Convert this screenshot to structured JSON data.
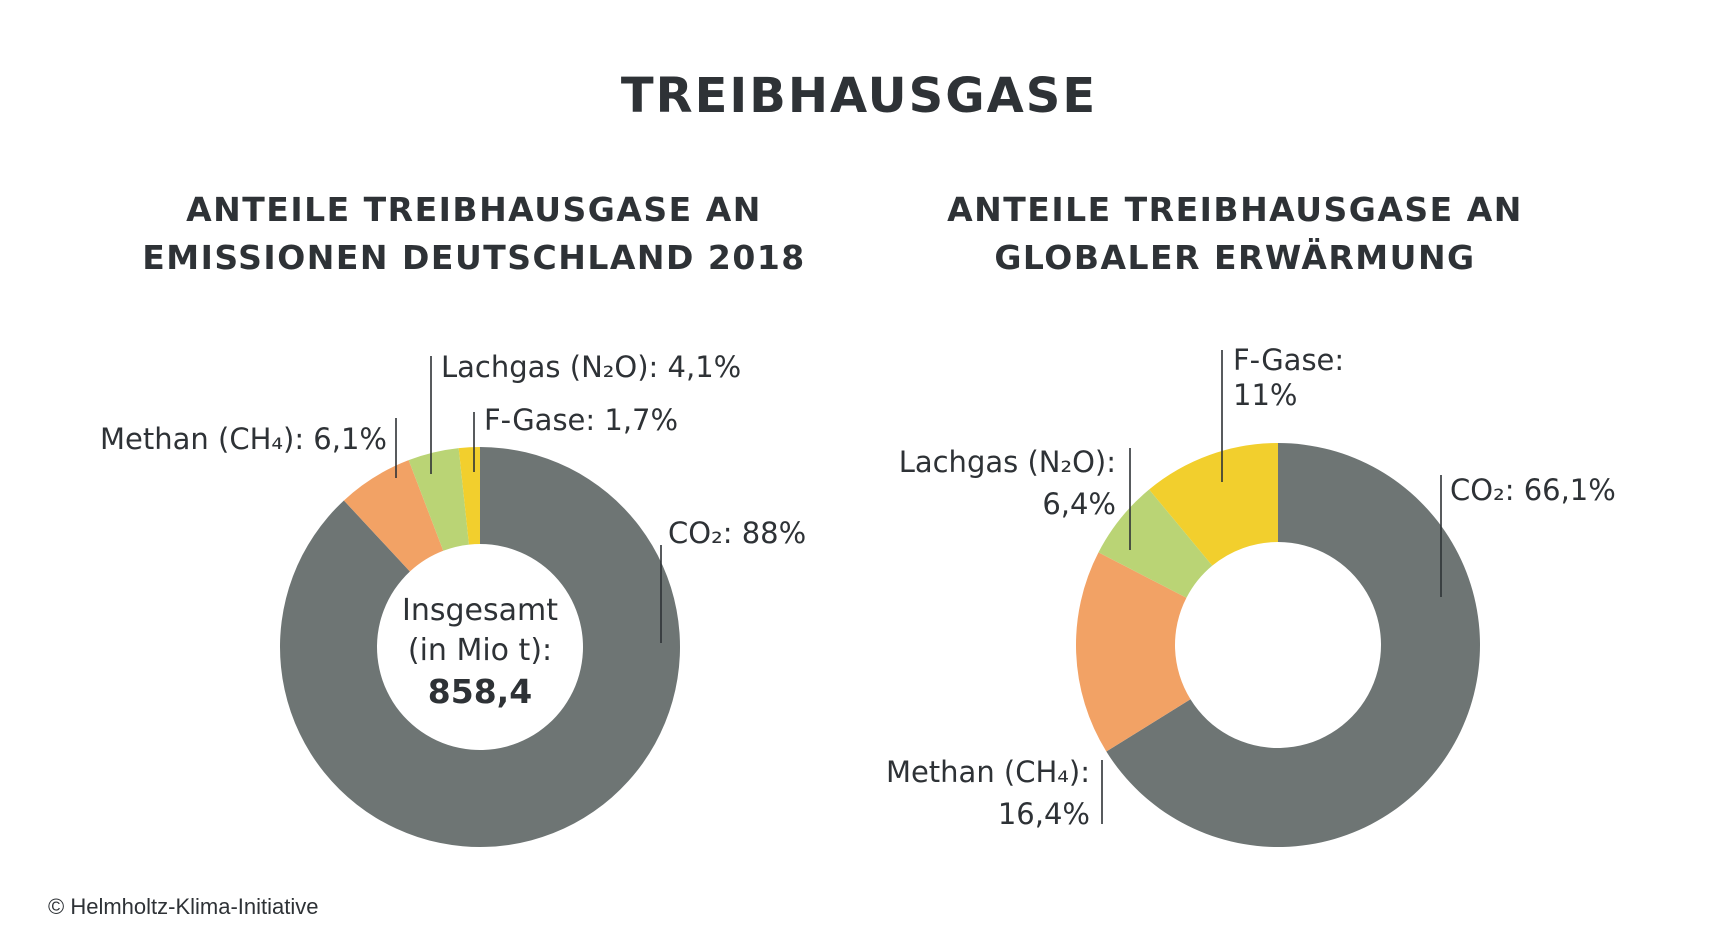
{
  "title": "TREIBHAUSGASE",
  "copyright": "© Helmholtz-Klima-Initiative",
  "colors": {
    "co2": "#6e7574",
    "methan": "#f2a265",
    "lachgas": "#bad475",
    "fgase": "#f2cf2d",
    "text": "#2e3236"
  },
  "chart_data": [
    {
      "type": "pie",
      "donut": true,
      "title_lines": [
        "ANTEILE TREIBHAUSGASE AN",
        "EMISSIONEN DEUTSCHLAND 2018"
      ],
      "center": {
        "line1": "Insgesamt",
        "line2": "(in Mio t):",
        "value": "858,4"
      },
      "slices": [
        {
          "key": "co2",
          "label": "CO₂: 88%",
          "value": 88
        },
        {
          "key": "methan",
          "label": "Methan (CH₄): 6,1%",
          "value": 6.1
        },
        {
          "key": "lachgas",
          "label": "Lachgas (N₂O): 4,1%",
          "value": 4.1
        },
        {
          "key": "fgase",
          "label": "F-Gase:  1,7%",
          "value": 1.7
        }
      ]
    },
    {
      "type": "pie",
      "donut": true,
      "title_lines": [
        "ANTEILE TREIBHAUSGASE AN",
        "GLOBALER ERWÄRMUNG"
      ],
      "slices": [
        {
          "key": "co2",
          "label": "CO₂: 66,1%",
          "value": 66.1
        },
        {
          "key": "methan",
          "label": "Methan (CH₄):",
          "label2": "16,4%",
          "value": 16.4
        },
        {
          "key": "lachgas",
          "label": "Lachgas (N₂O):",
          "label2": "6,4%",
          "value": 6.4
        },
        {
          "key": "fgase",
          "label": "F-Gase:",
          "label2": "11%",
          "value": 11
        }
      ]
    }
  ]
}
